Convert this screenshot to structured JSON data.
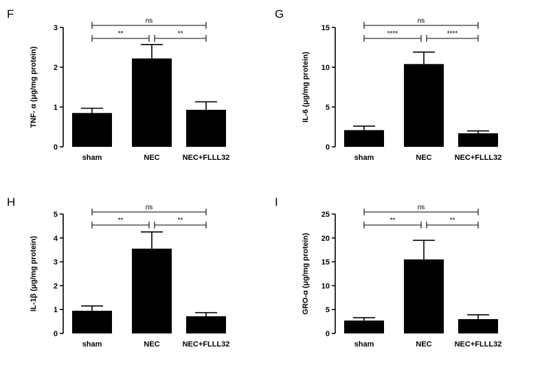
{
  "chart_data": [
    {
      "panel": "F",
      "type": "bar",
      "categories": [
        "sham",
        "NEC",
        "NEC+FLLL32"
      ],
      "values": [
        0.85,
        2.22,
        0.93
      ],
      "errors": [
        0.12,
        0.35,
        0.2
      ],
      "ylabel": "TNF- α (μg/mg protein)",
      "ylim": [
        0,
        3
      ],
      "yticks": [
        0,
        1,
        2,
        3
      ],
      "significance": [
        {
          "from": 0,
          "to": 2,
          "label": "ns",
          "level": 2
        },
        {
          "from": 0,
          "to": 1,
          "label": "**",
          "level": 1
        },
        {
          "from": 1,
          "to": 2,
          "label": "**",
          "level": 1
        }
      ]
    },
    {
      "panel": "G",
      "type": "bar",
      "categories": [
        "sham",
        "NEC",
        "NEC+FLLL32"
      ],
      "values": [
        2.1,
        10.4,
        1.7
      ],
      "errors": [
        0.5,
        1.5,
        0.3
      ],
      "ylabel": "IL-6 (μg/mg protein)",
      "ylim": [
        0,
        15
      ],
      "yticks": [
        0,
        5,
        10,
        15
      ],
      "significance": [
        {
          "from": 0,
          "to": 2,
          "label": "ns",
          "level": 2
        },
        {
          "from": 0,
          "to": 1,
          "label": "****",
          "level": 1
        },
        {
          "from": 1,
          "to": 2,
          "label": "****",
          "level": 1
        }
      ]
    },
    {
      "panel": "H",
      "type": "bar",
      "categories": [
        "sham",
        "NEC",
        "NEC+FLLL32"
      ],
      "values": [
        0.95,
        3.55,
        0.72
      ],
      "errors": [
        0.2,
        0.7,
        0.15
      ],
      "ylabel": "IL-1β (μg/mg protein)",
      "ylim": [
        0,
        5
      ],
      "yticks": [
        0,
        1,
        2,
        3,
        4,
        5
      ],
      "significance": [
        {
          "from": 0,
          "to": 2,
          "label": "ns",
          "level": 2
        },
        {
          "from": 0,
          "to": 1,
          "label": "**",
          "level": 1
        },
        {
          "from": 1,
          "to": 2,
          "label": "**",
          "level": 1
        }
      ]
    },
    {
      "panel": "I",
      "type": "bar",
      "categories": [
        "sham",
        "NEC",
        "NEC+FLLL32"
      ],
      "values": [
        2.7,
        15.5,
        3.0
      ],
      "errors": [
        0.6,
        4.0,
        0.9
      ],
      "ylabel": "GRO-α (μg/mg protein)",
      "ylim": [
        0,
        25
      ],
      "yticks": [
        0,
        5,
        10,
        15,
        20,
        25
      ],
      "significance": [
        {
          "from": 0,
          "to": 2,
          "label": "ns",
          "level": 2
        },
        {
          "from": 0,
          "to": 1,
          "label": "**",
          "level": 1
        },
        {
          "from": 1,
          "to": 2,
          "label": "**",
          "level": 1
        }
      ]
    }
  ]
}
